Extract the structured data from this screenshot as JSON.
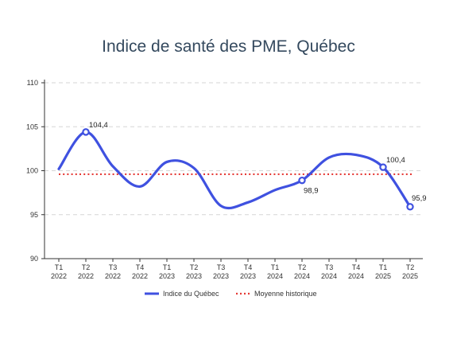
{
  "chart_data": {
    "type": "line",
    "title": "Indice de santé des PME, Québec",
    "xlabel": "",
    "ylabel": "",
    "categories": [
      [
        "T1",
        "2022"
      ],
      [
        "T2",
        "2022"
      ],
      [
        "T3",
        "2022"
      ],
      [
        "T4",
        "2022"
      ],
      [
        "T1",
        "2023"
      ],
      [
        "T2",
        "2023"
      ],
      [
        "T3",
        "2023"
      ],
      [
        "T4",
        "2023"
      ],
      [
        "T1",
        "2024"
      ],
      [
        "T2",
        "2024"
      ],
      [
        "T3",
        "2024"
      ],
      [
        "T4",
        "2024"
      ],
      [
        "T1",
        "2025"
      ],
      [
        "T2",
        "2025"
      ]
    ],
    "ylim": [
      90,
      110
    ],
    "yticks": [
      90,
      95,
      100,
      105,
      110
    ],
    "grid": "horizontal dashed",
    "series": [
      {
        "name": "Indice du Québec",
        "color": "#3f51e0",
        "values": [
          100.2,
          104.4,
          100.5,
          98.2,
          101.0,
          100.3,
          96.0,
          96.4,
          97.8,
          98.9,
          101.5,
          101.8,
          100.4,
          95.9
        ],
        "labeled_points": [
          {
            "index": 1,
            "label": "104,4"
          },
          {
            "index": 9,
            "label": "98,9"
          },
          {
            "index": 12,
            "label": "100,4"
          },
          {
            "index": 13,
            "label": "95,9"
          }
        ]
      },
      {
        "name": "Moyenne historique",
        "color": "#e53935",
        "style": "dotted",
        "value": 99.6
      }
    ],
    "legend": "bottom"
  }
}
